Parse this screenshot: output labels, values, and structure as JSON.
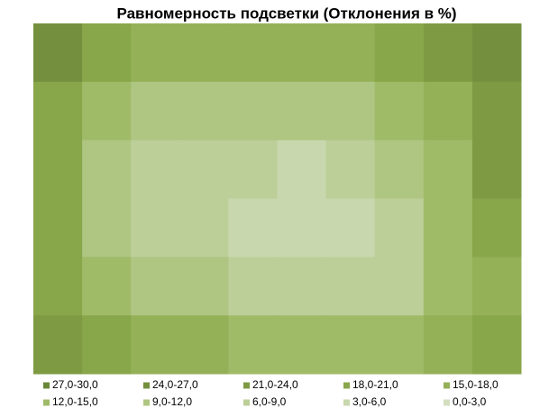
{
  "chart_data": {
    "type": "contour",
    "title": "Равномерность подсветки (Отклонения в %)",
    "bands": [
      {
        "name": "27,0-30,0",
        "min": 27,
        "max": 30,
        "color": "#6a8738"
      },
      {
        "name": "24,0-27,0",
        "min": 24,
        "max": 27,
        "color": "#74903e"
      },
      {
        "name": "21,0-24,0",
        "min": 21,
        "max": 24,
        "color": "#7e9b44"
      },
      {
        "name": "18,0-21,0",
        "min": 18,
        "max": 21,
        "color": "#88a64a"
      },
      {
        "name": "15,0-18,0",
        "min": 15,
        "max": 18,
        "color": "#94b158"
      },
      {
        "name": "12,0-15,0",
        "min": 12,
        "max": 15,
        "color": "#a0bb68"
      },
      {
        "name": "9,0-12,0",
        "min": 9,
        "max": 12,
        "color": "#afc582"
      },
      {
        "name": "6,0-9,0",
        "min": 6,
        "max": 9,
        "color": "#bccf99"
      },
      {
        "name": "3,0-6,0",
        "min": 3,
        "max": 6,
        "color": "#c8d7ad"
      },
      {
        "name": "0,0-3,0",
        "min": 0,
        "max": 3,
        "color": "#d3dec0"
      }
    ],
    "z": [
      [
        27,
        25,
        23,
        22,
        22,
        23,
        22,
        22,
        23,
        25,
        28
      ],
      [
        25,
        19,
        13,
        12,
        12,
        13,
        13,
        14,
        16,
        21,
        26
      ],
      [
        23,
        15,
        6,
        7,
        10,
        9,
        8,
        9,
        12,
        18,
        25
      ],
      [
        22,
        14,
        5,
        8,
        4,
        2,
        3,
        7,
        10,
        17,
        24
      ],
      [
        23,
        15,
        8,
        9,
        7,
        5,
        2,
        4,
        9,
        15,
        22
      ],
      [
        25,
        18,
        14,
        13,
        12,
        11,
        10,
        9,
        13,
        14,
        20
      ],
      [
        27,
        23,
        20,
        19,
        18,
        17,
        17,
        16,
        18,
        19,
        24
      ]
    ]
  }
}
